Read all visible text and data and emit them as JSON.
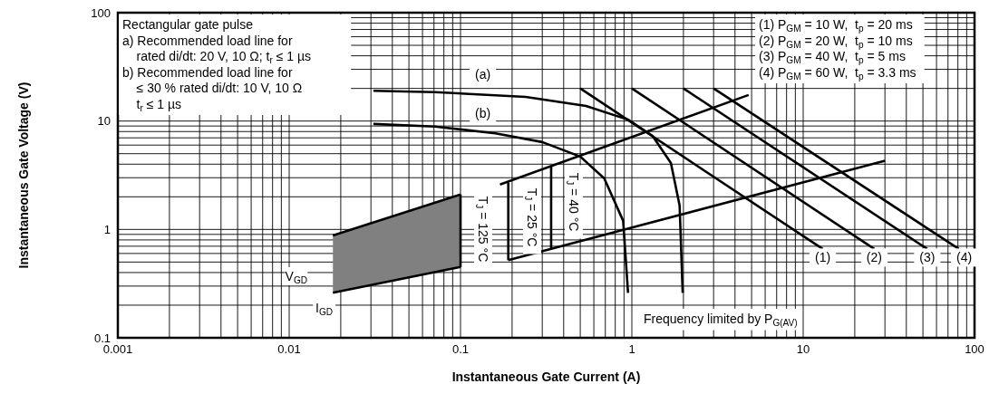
{
  "chart_data": {
    "type": "line",
    "xlabel": "Instantaneous Gate Current (A)",
    "ylabel": "Instantaneous Gate Voltage (V)",
    "log": "xy",
    "grid": true,
    "marker": "none",
    "line_style": "solid",
    "xlim": [
      0.001,
      100
    ],
    "ylim": [
      0.1,
      100
    ],
    "xticks": [
      0.001,
      {
        "value": 0.002,
        "label": null
      },
      {
        "value": 0.003,
        "label": null
      },
      {
        "value": 0.004,
        "label": null
      },
      {
        "value": 0.005,
        "label": null
      },
      {
        "value": 0.006,
        "label": null
      },
      {
        "value": 0.007,
        "label": null
      },
      {
        "value": 0.008,
        "label": null
      },
      {
        "value": 0.009,
        "label": null
      },
      0.01,
      {
        "value": 0.02,
        "label": null
      },
      {
        "value": 0.03,
        "label": null
      },
      {
        "value": 0.04,
        "label": null
      },
      {
        "value": 0.05,
        "label": null
      },
      {
        "value": 0.06,
        "label": null
      },
      {
        "value": 0.07,
        "label": null
      },
      {
        "value": 0.08,
        "label": null
      },
      {
        "value": 0.09,
        "label": null
      },
      0.1,
      {
        "value": 0.2,
        "label": null
      },
      {
        "value": 0.3,
        "label": null
      },
      {
        "value": 0.4,
        "label": null
      },
      {
        "value": 0.5,
        "label": null
      },
      {
        "value": 0.6,
        "label": null
      },
      {
        "value": 0.7,
        "label": null
      },
      {
        "value": 0.8,
        "label": null
      },
      {
        "value": 0.9,
        "label": null
      },
      1,
      {
        "value": 2,
        "label": null
      },
      {
        "value": 3,
        "label": null
      },
      {
        "value": 4,
        "label": null
      },
      {
        "value": 5,
        "label": null
      },
      {
        "value": 6,
        "label": null
      },
      {
        "value": 7,
        "label": null
      },
      {
        "value": 8,
        "label": null
      },
      {
        "value": 9,
        "label": null
      },
      10,
      {
        "value": 20,
        "label": null
      },
      {
        "value": 30,
        "label": null
      },
      {
        "value": 40,
        "label": null
      },
      {
        "value": 50,
        "label": null
      },
      {
        "value": 60,
        "label": null
      },
      {
        "value": 70,
        "label": null
      },
      {
        "value": 80,
        "label": null
      },
      {
        "value": 90,
        "label": null
      },
      100
    ],
    "yticks": [
      0.1,
      {
        "value": 0.2,
        "label": null
      },
      {
        "value": 0.3,
        "label": null
      },
      {
        "value": 0.4,
        "label": null
      },
      {
        "value": 0.5,
        "label": null
      },
      {
        "value": 0.6,
        "label": null
      },
      {
        "value": 0.7,
        "label": null
      },
      {
        "value": 0.8,
        "label": null
      },
      {
        "value": 0.9,
        "label": null
      },
      1,
      {
        "value": 2,
        "label": null
      },
      {
        "value": 3,
        "label": null
      },
      {
        "value": 4,
        "label": null
      },
      {
        "value": 5,
        "label": null
      },
      {
        "value": 6,
        "label": null
      },
      {
        "value": 7,
        "label": null
      },
      {
        "value": 8,
        "label": null
      },
      {
        "value": 9,
        "label": null
      },
      10,
      {
        "value": 20,
        "label": null
      },
      {
        "value": 30,
        "label": null
      },
      {
        "value": 40,
        "label": null
      },
      {
        "value": 50,
        "label": null
      },
      {
        "value": 60,
        "label": null
      },
      {
        "value": 70,
        "label": null
      },
      {
        "value": 80,
        "label": null
      },
      {
        "value": 90,
        "label": null
      },
      100
    ],
    "series": [
      {
        "color": "#000000",
        "x": [
          0.018,
          0.1
        ],
        "values": [
          0.88,
          2.1
        ],
        "lower": [
          0.26,
          0.45
        ],
        "upper": [
          0.88,
          2.1
        ]
      },
      {
        "color": "#000000",
        "x": [
          0.018,
          0.1
        ],
        "values": [
          0.26,
          0.45
        ]
      },
      {
        "color": "#000000",
        "x": [
          0.031,
          0.071,
          0.24,
          0.54,
          0.95,
          1.32,
          1.69,
          1.9,
          1.98
        ],
        "values": [
          19,
          18.5,
          16.7,
          13.8,
          10.3,
          7.3,
          4.1,
          1.66,
          0.26
        ]
      },
      {
        "color": "#000000",
        "x": [
          0.031,
          0.071,
          0.16,
          0.3,
          0.5,
          0.69,
          0.89,
          0.95
        ],
        "values": [
          9.4,
          8.9,
          7.7,
          6.4,
          4.7,
          2.96,
          1.2,
          0.26
        ]
      },
      {
        "color": "#000000",
        "x": [
          0.17,
          4.8
        ],
        "values": [
          2.6,
          17.4
        ]
      },
      {
        "color": "#000000",
        "x": [
          0.19,
          30
        ],
        "values": [
          0.52,
          4.3
        ]
      },
      {
        "color": "#000000",
        "x": [
          0.1,
          0.1
        ],
        "values": [
          0.45,
          2.1
        ]
      },
      {
        "color": "#000000",
        "x": [
          0.19,
          0.19
        ],
        "values": [
          0.52,
          2.7
        ]
      },
      {
        "color": "#000000",
        "x": [
          0.338,
          0.338
        ],
        "values": [
          0.66,
          3.9
        ]
      },
      {
        "color": "#000000",
        "x": [
          0.5,
          13
        ],
        "values": [
          20,
          0.66
        ]
      },
      {
        "color": "#000000",
        "x": [
          1,
          26
        ],
        "values": [
          20,
          0.66
        ]
      },
      {
        "color": "#000000",
        "x": [
          2,
          53
        ],
        "values": [
          20,
          0.66
        ]
      },
      {
        "color": "#000000",
        "x": [
          3,
          81
        ],
        "values": [
          20,
          0.66
        ]
      }
    ],
    "annotations": [
      "Rectangular gate pulse\na) Recommended load line for\n    rated di/dt: 20 V, 10 Ω; t$_{r}$ ≤ 1 µs\nb) Recommended load line for\n    ≤ 30 % rated di/dt: 10 V, 10 Ω\n    t$_{r}$ ≤ 1 µs",
      "(1) P$_{GM}$ = 10 W,  t$_{p}$ = 20 ms\n(2) P$_{GM}$ = 20 W,  t$_{p}$ = 10 ms\n(3) P$_{GM}$ = 40 W,  t$_{p}$ = 5 ms\n(4) P$_{GM}$ = 60 W,  t$_{p}$ = 3.3 ms",
      "Frequency limited by P$_{G(AV)}$",
      "T$_{J}$ = 125 °C",
      "T$_{J}$ = 25 °C",
      "T$_{J}$ = 40 °C",
      {
        "text": "(a)",
        "x": 0.135,
        "y": 27
      },
      {
        "text": "(b)",
        "x": 0.135,
        "y": 11.8
      },
      {
        "text": "(1)",
        "x": 13,
        "y": 0.55
      },
      {
        "text": "(2)",
        "x": 26,
        "y": 0.55
      },
      {
        "text": "(3)",
        "x": 53,
        "y": 0.55
      },
      {
        "text": "(4)",
        "x": 87,
        "y": 0.55
      },
      {
        "text": "V$_{GD}$",
        "x": 0.011,
        "y": 0.37
      },
      {
        "text": "I$_{GD}$",
        "x": 0.016,
        "y": 0.19
      }
    ]
  }
}
